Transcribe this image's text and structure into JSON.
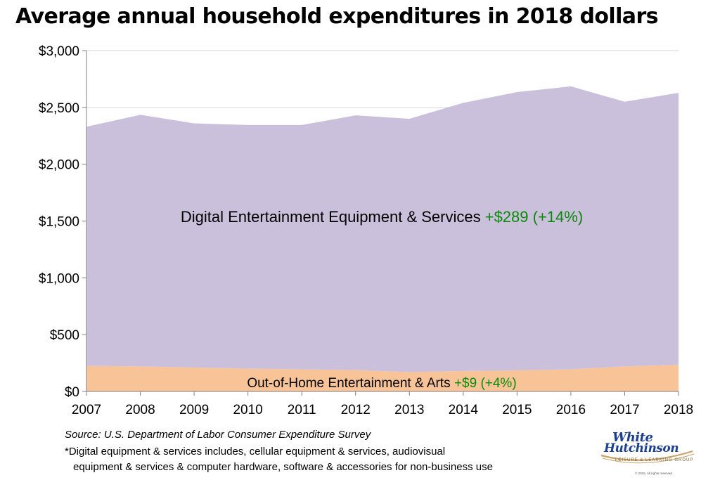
{
  "title": "Average annual household expenditures in 2018 dollars",
  "chart_data": {
    "type": "area",
    "stacked": true,
    "title": "Average annual household expenditures in 2018 dollars",
    "x": [
      "2007",
      "2008",
      "2009",
      "2010",
      "2011",
      "2012",
      "2013",
      "2014",
      "2015",
      "2016",
      "2017",
      "2018"
    ],
    "y_tick_labels": [
      "$0",
      "$500",
      "$1,000",
      "$1,500",
      "$2,000",
      "$2,500",
      "$3,000"
    ],
    "ylim": [
      0,
      3000
    ],
    "ystep": 500,
    "grid": "horizontal",
    "series": [
      {
        "name": "Out-of-Home Entertainment & Arts",
        "change": "+$9  (+4%)",
        "color": "#f8c497",
        "values": [
          225,
          220,
          210,
          200,
          195,
          188,
          170,
          180,
          185,
          195,
          220,
          234
        ]
      },
      {
        "name": "Digital Entertainment Equipment & Services",
        "change": "+$289  (+14%)",
        "color": "#cbc0dc",
        "values": [
          2105,
          2215,
          2150,
          2145,
          2150,
          2242,
          2230,
          2360,
          2450,
          2490,
          2330,
          2394
        ]
      }
    ],
    "annotation_color": "#0a8a0a"
  },
  "footer": {
    "source": "Source: U.S. Department of Labor Consumer Expenditure Survey",
    "note_line1": "*Digital equipment & services includes, cellular equipment & services, audiovisual",
    "note_line2": "equipment & services & computer hardware, software & accessories for non-business use"
  },
  "logo": {
    "line1": "White",
    "line2": "Hutchinson",
    "tagline": "LEISURE & LEARNING GROUP",
    "copyright": "© 2019, All rights reserved"
  }
}
